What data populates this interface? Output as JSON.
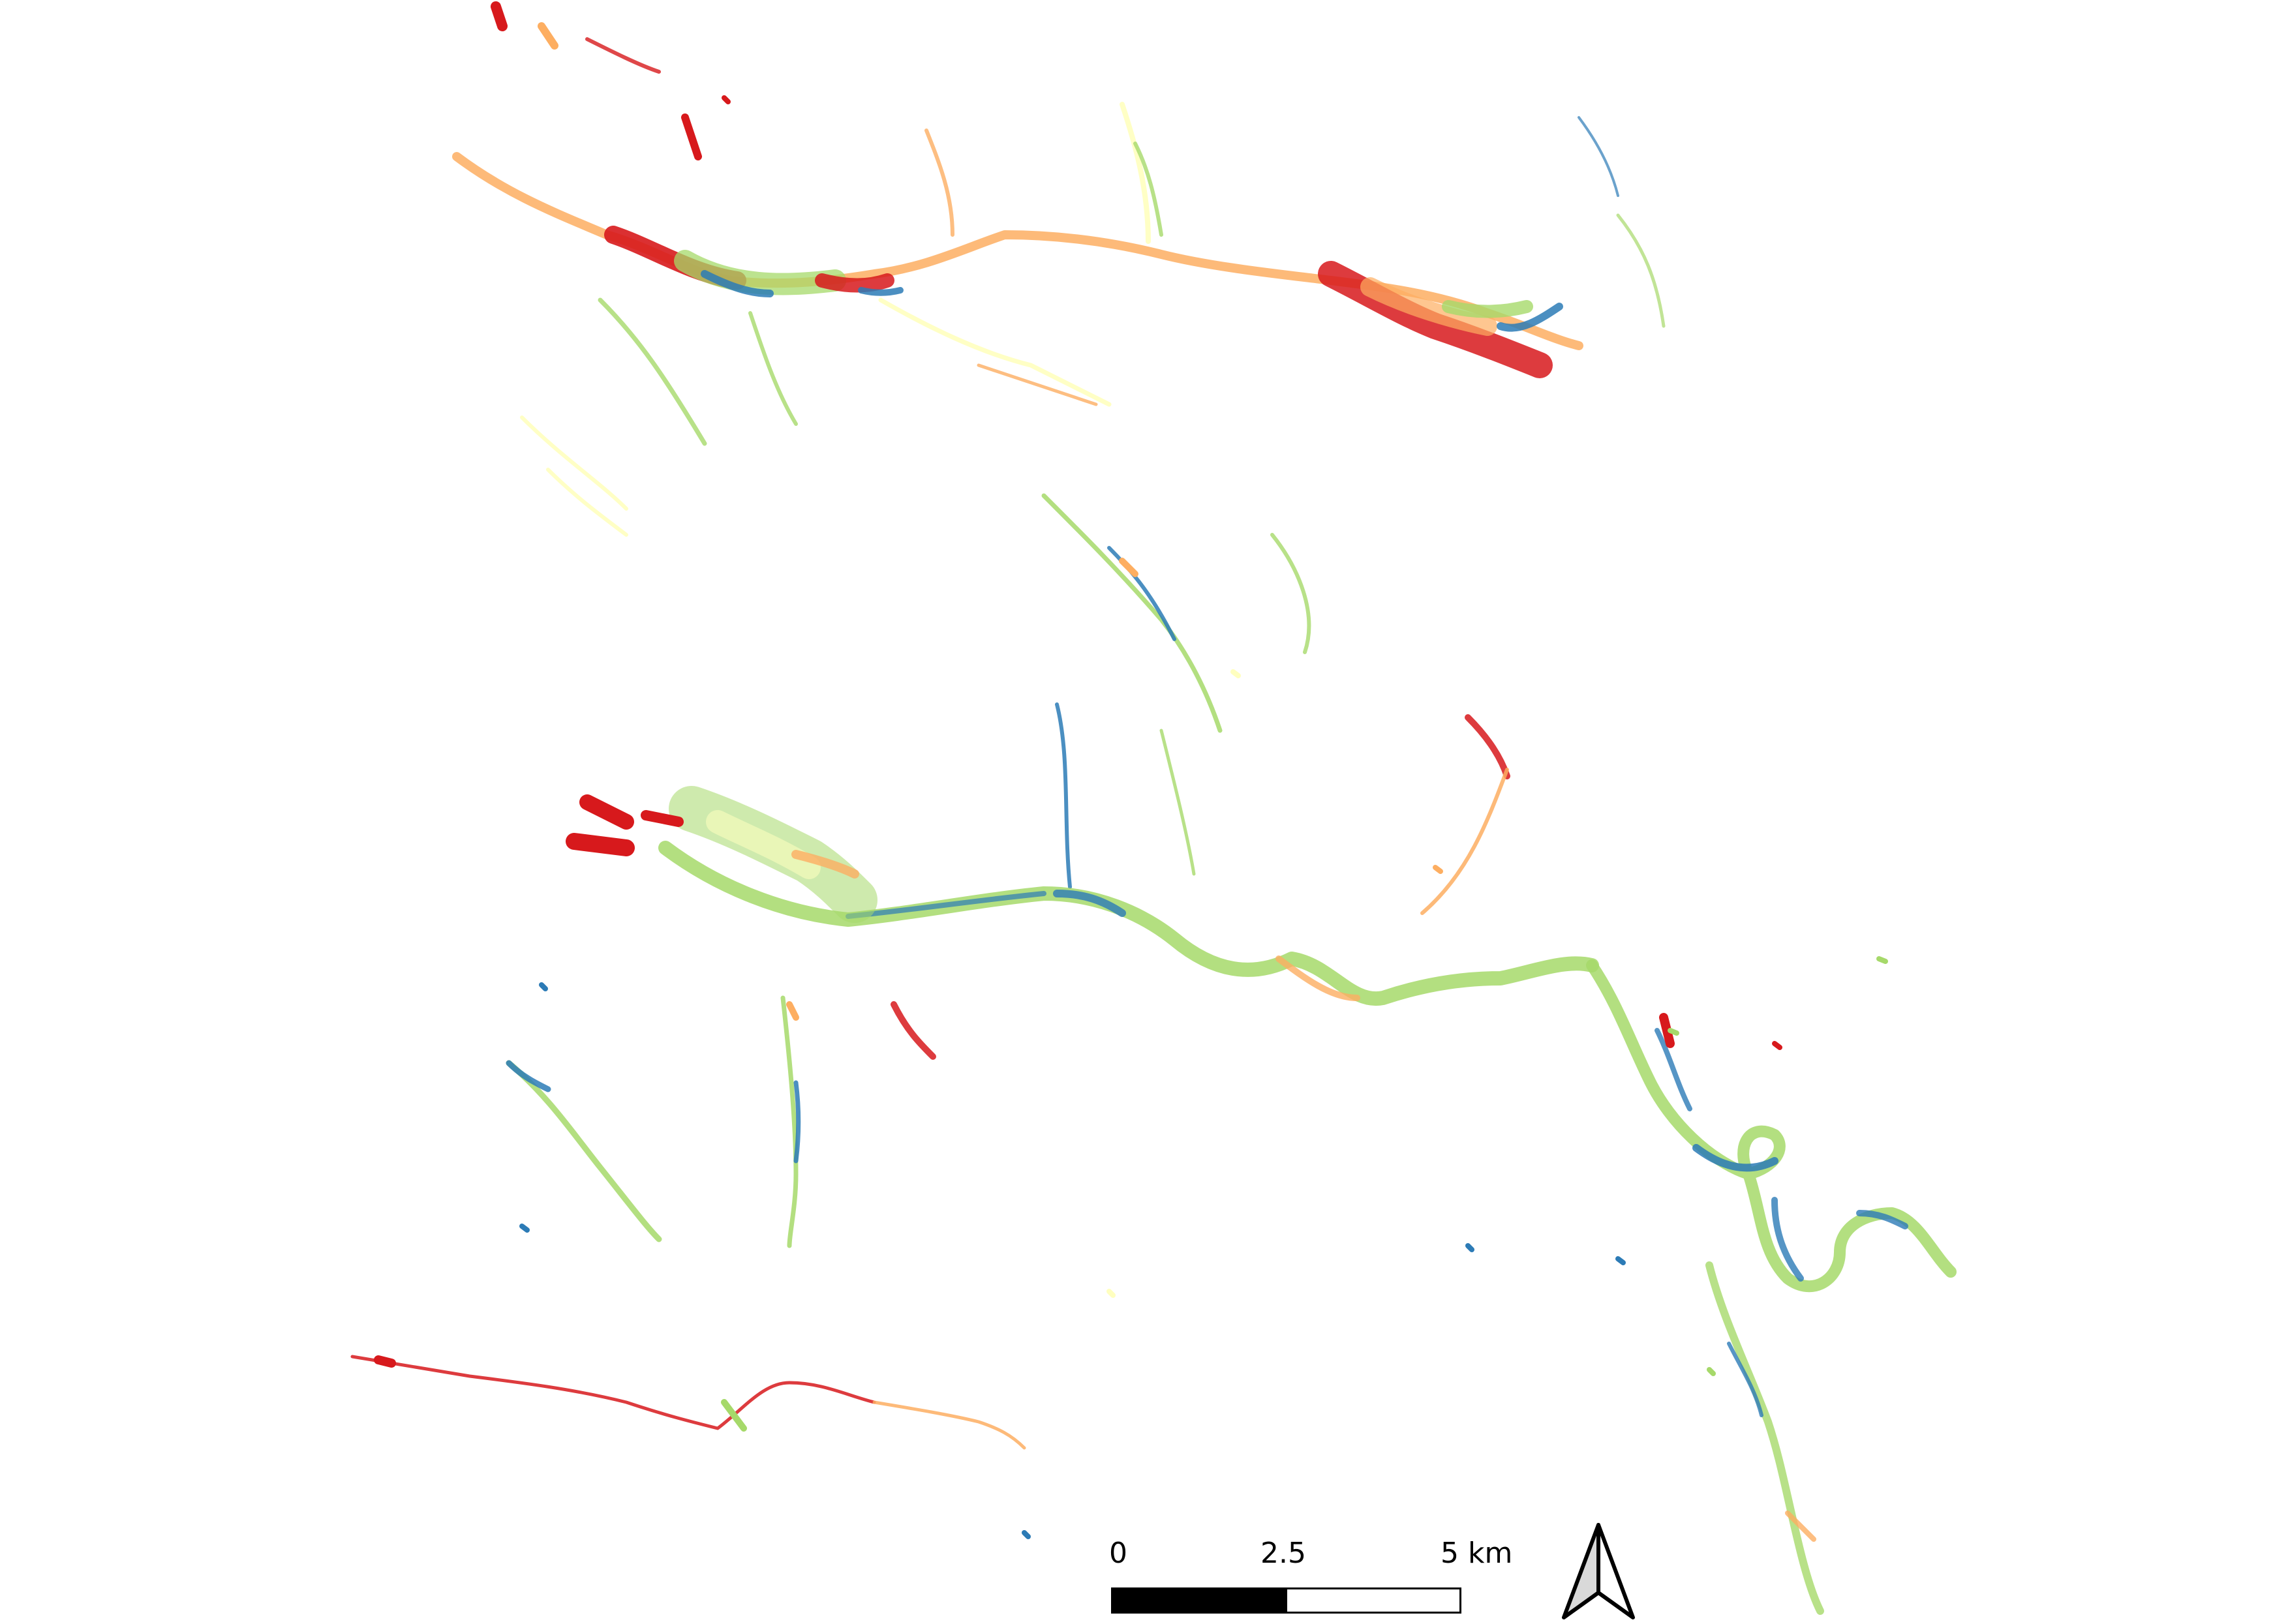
{
  "map": {
    "legend_ramp": [
      "#d7191c",
      "#fdae61",
      "#ffffbf",
      "#a6d96a",
      "#2c7bb6"
    ],
    "background": "#ffffff"
  },
  "scale_bar": {
    "label_start": "0",
    "label_mid": "2.5",
    "label_end": "5 km"
  },
  "north_arrow": {
    "icon": "north-arrow-icon"
  }
}
